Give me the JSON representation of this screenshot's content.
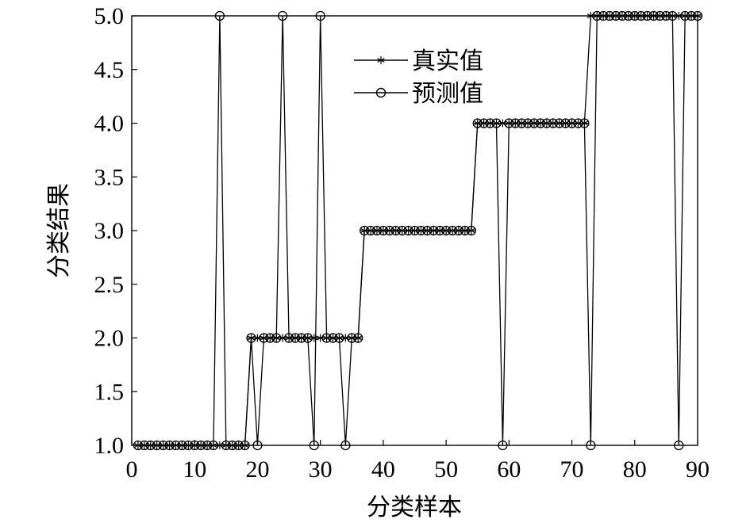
{
  "chart_data": {
    "type": "line",
    "xlabel": "分类样本",
    "ylabel": "分类结果",
    "xlim": [
      0,
      90
    ],
    "ylim": [
      1.0,
      5.0
    ],
    "xticks": [
      0,
      10,
      20,
      30,
      40,
      50,
      60,
      70,
      80,
      90
    ],
    "yticks": [
      "1.0",
      "1.5",
      "2.0",
      "2.5",
      "3.0",
      "3.5",
      "4.0",
      "4.5",
      "5.0"
    ],
    "grid": false,
    "legend_position": "top-center",
    "series": [
      {
        "name": "真实值",
        "marker": "asterisk",
        "x": [
          1,
          2,
          3,
          4,
          5,
          6,
          7,
          8,
          9,
          10,
          11,
          12,
          13,
          14,
          15,
          16,
          17,
          18,
          19,
          20,
          21,
          22,
          23,
          24,
          25,
          26,
          27,
          28,
          29,
          30,
          31,
          32,
          33,
          34,
          35,
          36,
          37,
          38,
          39,
          40,
          41,
          42,
          43,
          44,
          45,
          46,
          47,
          48,
          49,
          50,
          51,
          52,
          53,
          54,
          55,
          56,
          57,
          58,
          59,
          60,
          61,
          62,
          63,
          64,
          65,
          66,
          67,
          68,
          69,
          70,
          71,
          72,
          73,
          74,
          75,
          76,
          77,
          78,
          79,
          80,
          81,
          82,
          83,
          84,
          85,
          86,
          87,
          88,
          89,
          90
        ],
        "values": [
          1,
          1,
          1,
          1,
          1,
          1,
          1,
          1,
          1,
          1,
          1,
          1,
          1,
          1,
          1,
          1,
          1,
          1,
          2,
          2,
          2,
          2,
          2,
          2,
          2,
          2,
          2,
          2,
          2,
          2,
          2,
          2,
          2,
          2,
          2,
          2,
          3,
          3,
          3,
          3,
          3,
          3,
          3,
          3,
          3,
          3,
          3,
          3,
          3,
          3,
          3,
          3,
          3,
          3,
          4,
          4,
          4,
          4,
          4,
          4,
          4,
          4,
          4,
          4,
          4,
          4,
          4,
          4,
          4,
          4,
          4,
          4,
          5,
          5,
          5,
          5,
          5,
          5,
          5,
          5,
          5,
          5,
          5,
          5,
          5,
          5,
          5,
          5,
          5,
          5
        ]
      },
      {
        "name": "预测值",
        "marker": "circle",
        "x": [
          1,
          2,
          3,
          4,
          5,
          6,
          7,
          8,
          9,
          10,
          11,
          12,
          13,
          14,
          15,
          16,
          17,
          18,
          19,
          20,
          21,
          22,
          23,
          24,
          25,
          26,
          27,
          28,
          29,
          30,
          31,
          32,
          33,
          34,
          35,
          36,
          37,
          38,
          39,
          40,
          41,
          42,
          43,
          44,
          45,
          46,
          47,
          48,
          49,
          50,
          51,
          52,
          53,
          54,
          55,
          56,
          57,
          58,
          59,
          60,
          61,
          62,
          63,
          64,
          65,
          66,
          67,
          68,
          69,
          70,
          71,
          72,
          73,
          74,
          75,
          76,
          77,
          78,
          79,
          80,
          81,
          82,
          83,
          84,
          85,
          86,
          87,
          88,
          89,
          90
        ],
        "values": [
          1,
          1,
          1,
          1,
          1,
          1,
          1,
          1,
          1,
          1,
          1,
          1,
          1,
          5,
          1,
          1,
          1,
          1,
          2,
          1,
          2,
          2,
          2,
          5,
          2,
          2,
          2,
          2,
          1,
          5,
          2,
          2,
          2,
          1,
          2,
          2,
          3,
          3,
          3,
          3,
          3,
          3,
          3,
          3,
          3,
          3,
          3,
          3,
          3,
          3,
          3,
          3,
          3,
          3,
          4,
          4,
          4,
          4,
          1,
          4,
          4,
          4,
          4,
          4,
          4,
          4,
          4,
          4,
          4,
          4,
          4,
          4,
          1,
          5,
          5,
          5,
          5,
          5,
          5,
          5,
          5,
          5,
          5,
          5,
          5,
          5,
          1,
          5,
          5,
          5
        ]
      }
    ]
  }
}
